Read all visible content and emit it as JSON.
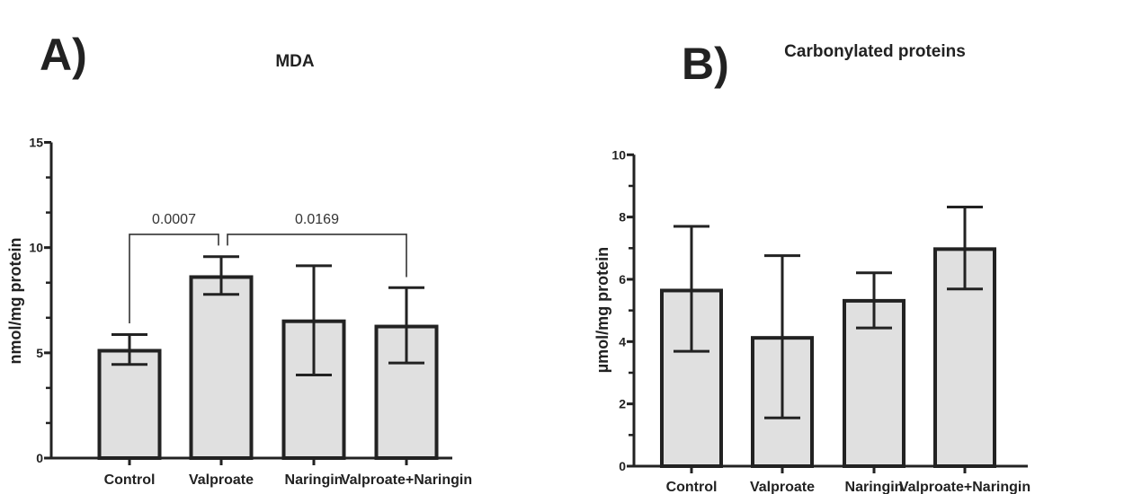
{
  "chart_data": [
    {
      "type": "bar",
      "panel_label": "A)",
      "title": "MDA",
      "ylabel": "nmol/mg protein",
      "xlabel": "",
      "categories": [
        "Control",
        "Valproate",
        "Naringin",
        "Valproate+Naringin"
      ],
      "values": [
        5.1,
        8.6,
        6.5,
        6.25
      ],
      "error_upper": [
        5.87,
        9.57,
        9.14,
        8.1
      ],
      "error_lower": [
        4.45,
        7.78,
        3.95,
        4.52
      ],
      "ylim": [
        0,
        15
      ],
      "yticks": [
        0,
        5,
        10,
        15
      ],
      "grid": false,
      "bar_color": "#e0e0e0",
      "edge_color": "#222222",
      "annotations": [
        {
          "text": "0.0007",
          "from": "Control",
          "to": "Valproate"
        },
        {
          "text": "0.0169",
          "from": "Valproate",
          "to": "Valproate+Naringin"
        }
      ]
    },
    {
      "type": "bar",
      "panel_label": "B)",
      "title": "Carbonylated proteins",
      "ylabel": "µmol/mg protein",
      "xlabel": "",
      "categories": [
        "Control",
        "Valproate",
        "Naringin",
        "Valproate+Naringin"
      ],
      "values": [
        5.64,
        4.12,
        5.31,
        6.97
      ],
      "error_upper": [
        7.7,
        6.76,
        6.21,
        8.32
      ],
      "error_lower": [
        3.69,
        1.55,
        4.44,
        5.69
      ],
      "ylim": [
        0,
        10
      ],
      "yticks": [
        0,
        2,
        4,
        6,
        8,
        10
      ],
      "grid": false,
      "bar_color": "#e0e0e0",
      "edge_color": "#222222",
      "annotations": []
    }
  ]
}
